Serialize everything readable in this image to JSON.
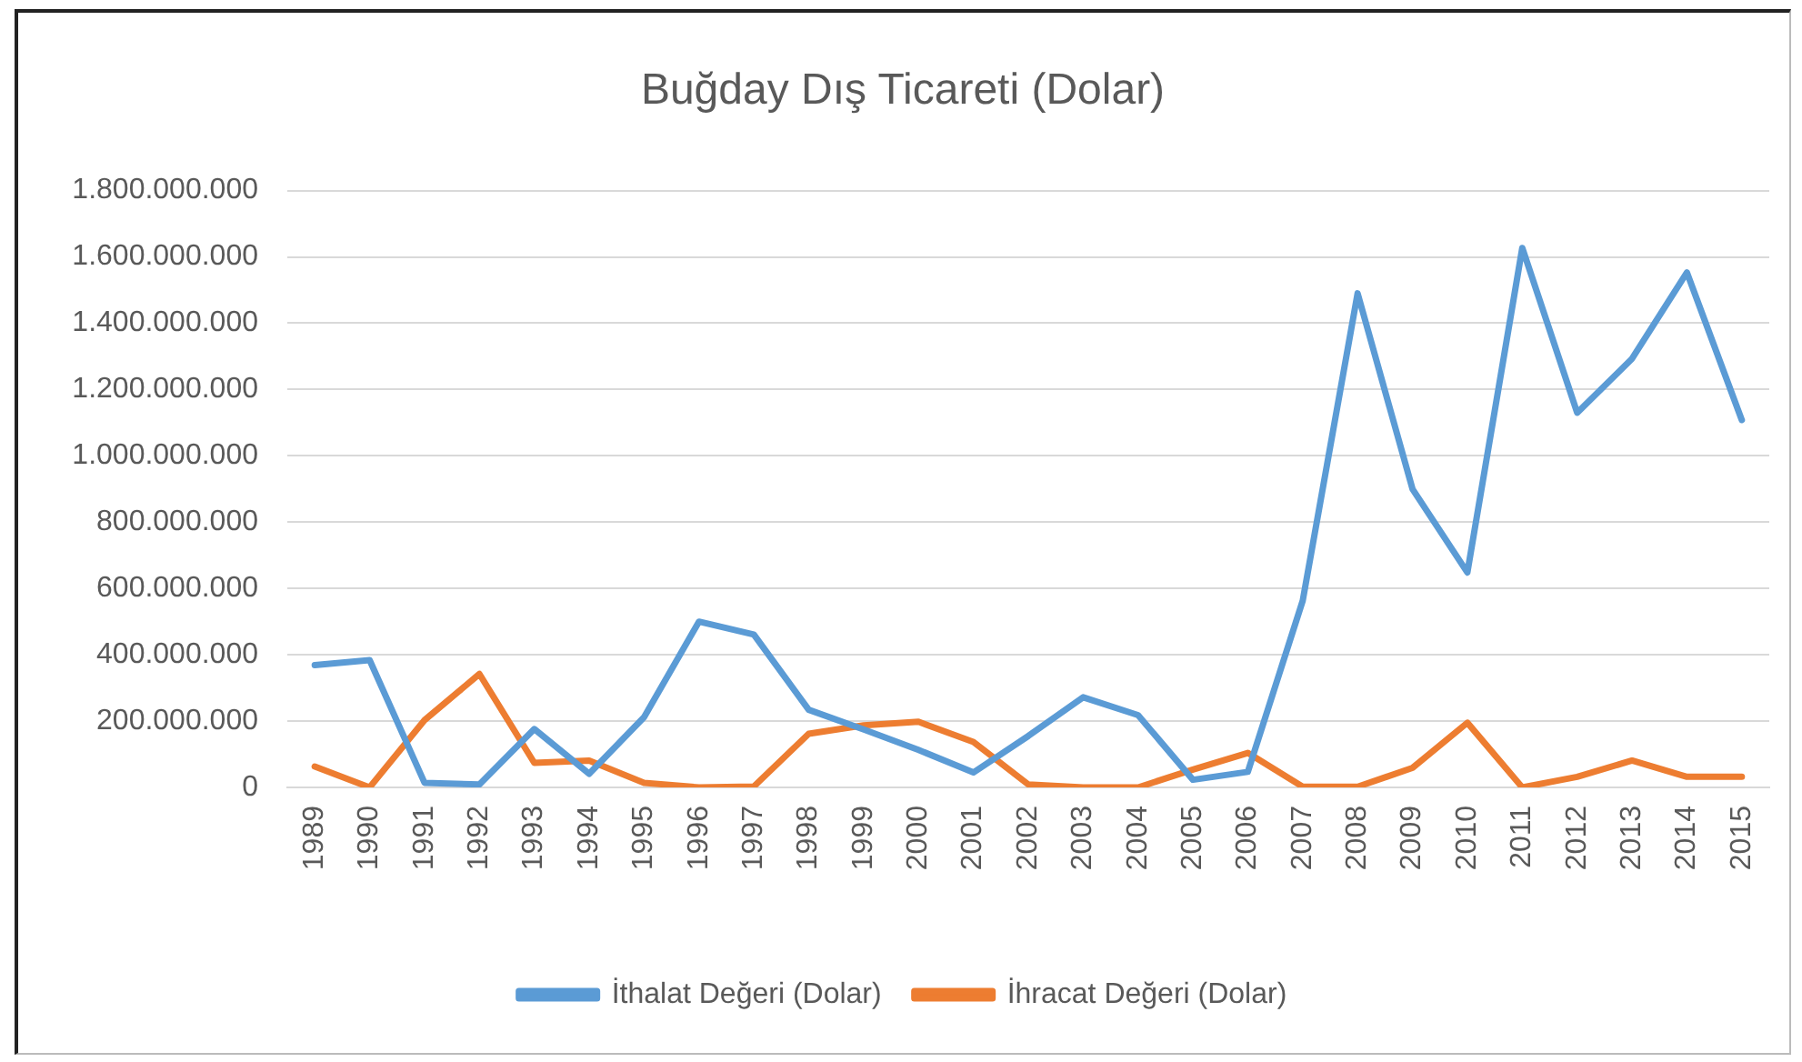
{
  "chart_data": {
    "type": "line",
    "title": "Buğday Dış Ticareti (Dolar)",
    "categories": [
      "1989",
      "1990",
      "1991",
      "1992",
      "1993",
      "1994",
      "1995",
      "1996",
      "1997",
      "1998",
      "1999",
      "2000",
      "2001",
      "2002",
      "2003",
      "2004",
      "2005",
      "2006",
      "2007",
      "2008",
      "2009",
      "2010",
      "2011",
      "2012",
      "2013",
      "2014",
      "2015"
    ],
    "series": [
      {
        "name": "İthalat Değeri (Dolar)",
        "color": "#5b9bd5",
        "values": [
          369000000,
          384000000,
          14000000,
          9000000,
          176000000,
          41000000,
          212000000,
          500000000,
          461000000,
          234000000,
          175000000,
          113000000,
          45000000,
          155000000,
          272000000,
          218000000,
          23000000,
          47000000,
          563000000,
          1490000000,
          900000000,
          648000000,
          1627000000,
          1130000000,
          1293000000,
          1553000000,
          1108000000
        ]
      },
      {
        "name": "İhracat Değeri (Dolar)",
        "color": "#ed7d31",
        "values": [
          63000000,
          0,
          203000000,
          342000000,
          74000000,
          81000000,
          14000000,
          0,
          3000000,
          162000000,
          187000000,
          198000000,
          137000000,
          9000000,
          0,
          0,
          54000000,
          104000000,
          2000000,
          2000000,
          59000000,
          195000000,
          0,
          32000000,
          81000000,
          32000000,
          32000000
        ]
      }
    ],
    "ylim": [
      0,
      1800000000
    ],
    "yticks": [
      0,
      {
        "value": 200000000,
        "label": "200.000.000"
      },
      {
        "value": 400000000,
        "label": "400.000.000"
      },
      {
        "value": 600000000,
        "label": "600.000.000"
      },
      {
        "value": 800000000,
        "label": "800.000.000"
      },
      {
        "value": 1000000000,
        "label": "1.000.000.000"
      },
      {
        "value": 1200000000,
        "label": "1.200.000.000"
      },
      {
        "value": 1400000000,
        "label": "1.400.000.000"
      },
      {
        "value": 1600000000,
        "label": "1.600.000.000"
      },
      {
        "value": 1800000000,
        "label": "1.800.000.000"
      }
    ],
    "grid": "y",
    "legend": "bottom",
    "marker": "none",
    "line_style": "solid"
  }
}
